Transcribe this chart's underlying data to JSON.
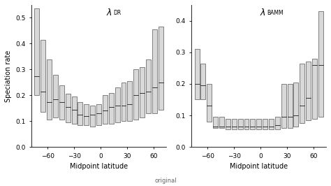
{
  "xlabel": "Midpoint latitude",
  "ylabel": "Speciation rate",
  "footnote": "original",
  "left_ylim": [
    0.0,
    0.55
  ],
  "right_ylim": [
    0.0,
    0.45
  ],
  "left_yticks": [
    0.0,
    0.1,
    0.2,
    0.3,
    0.4,
    0.5
  ],
  "right_yticks": [
    0.0,
    0.1,
    0.2,
    0.3,
    0.4
  ],
  "xticks": [
    -60,
    -30,
    0,
    30,
    60
  ],
  "background_color": "#ffffff",
  "box_facecolor": "#d8d8d8",
  "box_edgecolor": "#555555",
  "median_color": "#333333",
  "box_width": 5.5,
  "DR_boxes": [
    {
      "x": -72,
      "lo": 0.2,
      "median": 0.275,
      "hi": 0.535
    },
    {
      "x": -65,
      "lo": 0.135,
      "median": 0.215,
      "hi": 0.415
    },
    {
      "x": -58,
      "lo": 0.105,
      "median": 0.175,
      "hi": 0.34
    },
    {
      "x": -51,
      "lo": 0.115,
      "median": 0.185,
      "hi": 0.28
    },
    {
      "x": -44,
      "lo": 0.105,
      "median": 0.175,
      "hi": 0.24
    },
    {
      "x": -37,
      "lo": 0.095,
      "median": 0.155,
      "hi": 0.205
    },
    {
      "x": -30,
      "lo": 0.09,
      "median": 0.145,
      "hi": 0.195
    },
    {
      "x": -23,
      "lo": 0.085,
      "median": 0.125,
      "hi": 0.175
    },
    {
      "x": -16,
      "lo": 0.085,
      "median": 0.12,
      "hi": 0.165
    },
    {
      "x": -9,
      "lo": 0.08,
      "median": 0.125,
      "hi": 0.16
    },
    {
      "x": -2,
      "lo": 0.085,
      "median": 0.13,
      "hi": 0.165
    },
    {
      "x": 5,
      "lo": 0.09,
      "median": 0.14,
      "hi": 0.2
    },
    {
      "x": 12,
      "lo": 0.09,
      "median": 0.155,
      "hi": 0.21
    },
    {
      "x": 19,
      "lo": 0.095,
      "median": 0.16,
      "hi": 0.23
    },
    {
      "x": 26,
      "lo": 0.1,
      "median": 0.16,
      "hi": 0.25
    },
    {
      "x": 33,
      "lo": 0.1,
      "median": 0.165,
      "hi": 0.255
    },
    {
      "x": 40,
      "lo": 0.105,
      "median": 0.2,
      "hi": 0.3
    },
    {
      "x": 47,
      "lo": 0.115,
      "median": 0.21,
      "hi": 0.31
    },
    {
      "x": 54,
      "lo": 0.13,
      "median": 0.215,
      "hi": 0.34
    },
    {
      "x": 61,
      "lo": 0.13,
      "median": 0.23,
      "hi": 0.455
    },
    {
      "x": 68,
      "lo": 0.145,
      "median": 0.25,
      "hi": 0.465
    }
  ],
  "BAMM_boxes": [
    {
      "x": -72,
      "lo": 0.15,
      "median": 0.2,
      "hi": 0.31
    },
    {
      "x": -65,
      "lo": 0.15,
      "median": 0.195,
      "hi": 0.265
    },
    {
      "x": -58,
      "lo": 0.08,
      "median": 0.13,
      "hi": 0.2
    },
    {
      "x": -51,
      "lo": 0.06,
      "median": 0.065,
      "hi": 0.095
    },
    {
      "x": -44,
      "lo": 0.06,
      "median": 0.065,
      "hi": 0.095
    },
    {
      "x": -37,
      "lo": 0.055,
      "median": 0.065,
      "hi": 0.09
    },
    {
      "x": -30,
      "lo": 0.055,
      "median": 0.065,
      "hi": 0.09
    },
    {
      "x": -23,
      "lo": 0.055,
      "median": 0.065,
      "hi": 0.09
    },
    {
      "x": -16,
      "lo": 0.055,
      "median": 0.065,
      "hi": 0.09
    },
    {
      "x": -9,
      "lo": 0.055,
      "median": 0.065,
      "hi": 0.09
    },
    {
      "x": -2,
      "lo": 0.055,
      "median": 0.065,
      "hi": 0.09
    },
    {
      "x": 5,
      "lo": 0.055,
      "median": 0.065,
      "hi": 0.09
    },
    {
      "x": 12,
      "lo": 0.055,
      "median": 0.065,
      "hi": 0.09
    },
    {
      "x": 19,
      "lo": 0.055,
      "median": 0.07,
      "hi": 0.095
    },
    {
      "x": 26,
      "lo": 0.06,
      "median": 0.095,
      "hi": 0.2
    },
    {
      "x": 33,
      "lo": 0.06,
      "median": 0.095,
      "hi": 0.2
    },
    {
      "x": 40,
      "lo": 0.065,
      "median": 0.1,
      "hi": 0.205
    },
    {
      "x": 47,
      "lo": 0.075,
      "median": 0.13,
      "hi": 0.265
    },
    {
      "x": 54,
      "lo": 0.085,
      "median": 0.155,
      "hi": 0.27
    },
    {
      "x": 61,
      "lo": 0.09,
      "median": 0.26,
      "hi": 0.28
    },
    {
      "x": 68,
      "lo": 0.095,
      "median": 0.26,
      "hi": 0.43
    }
  ]
}
